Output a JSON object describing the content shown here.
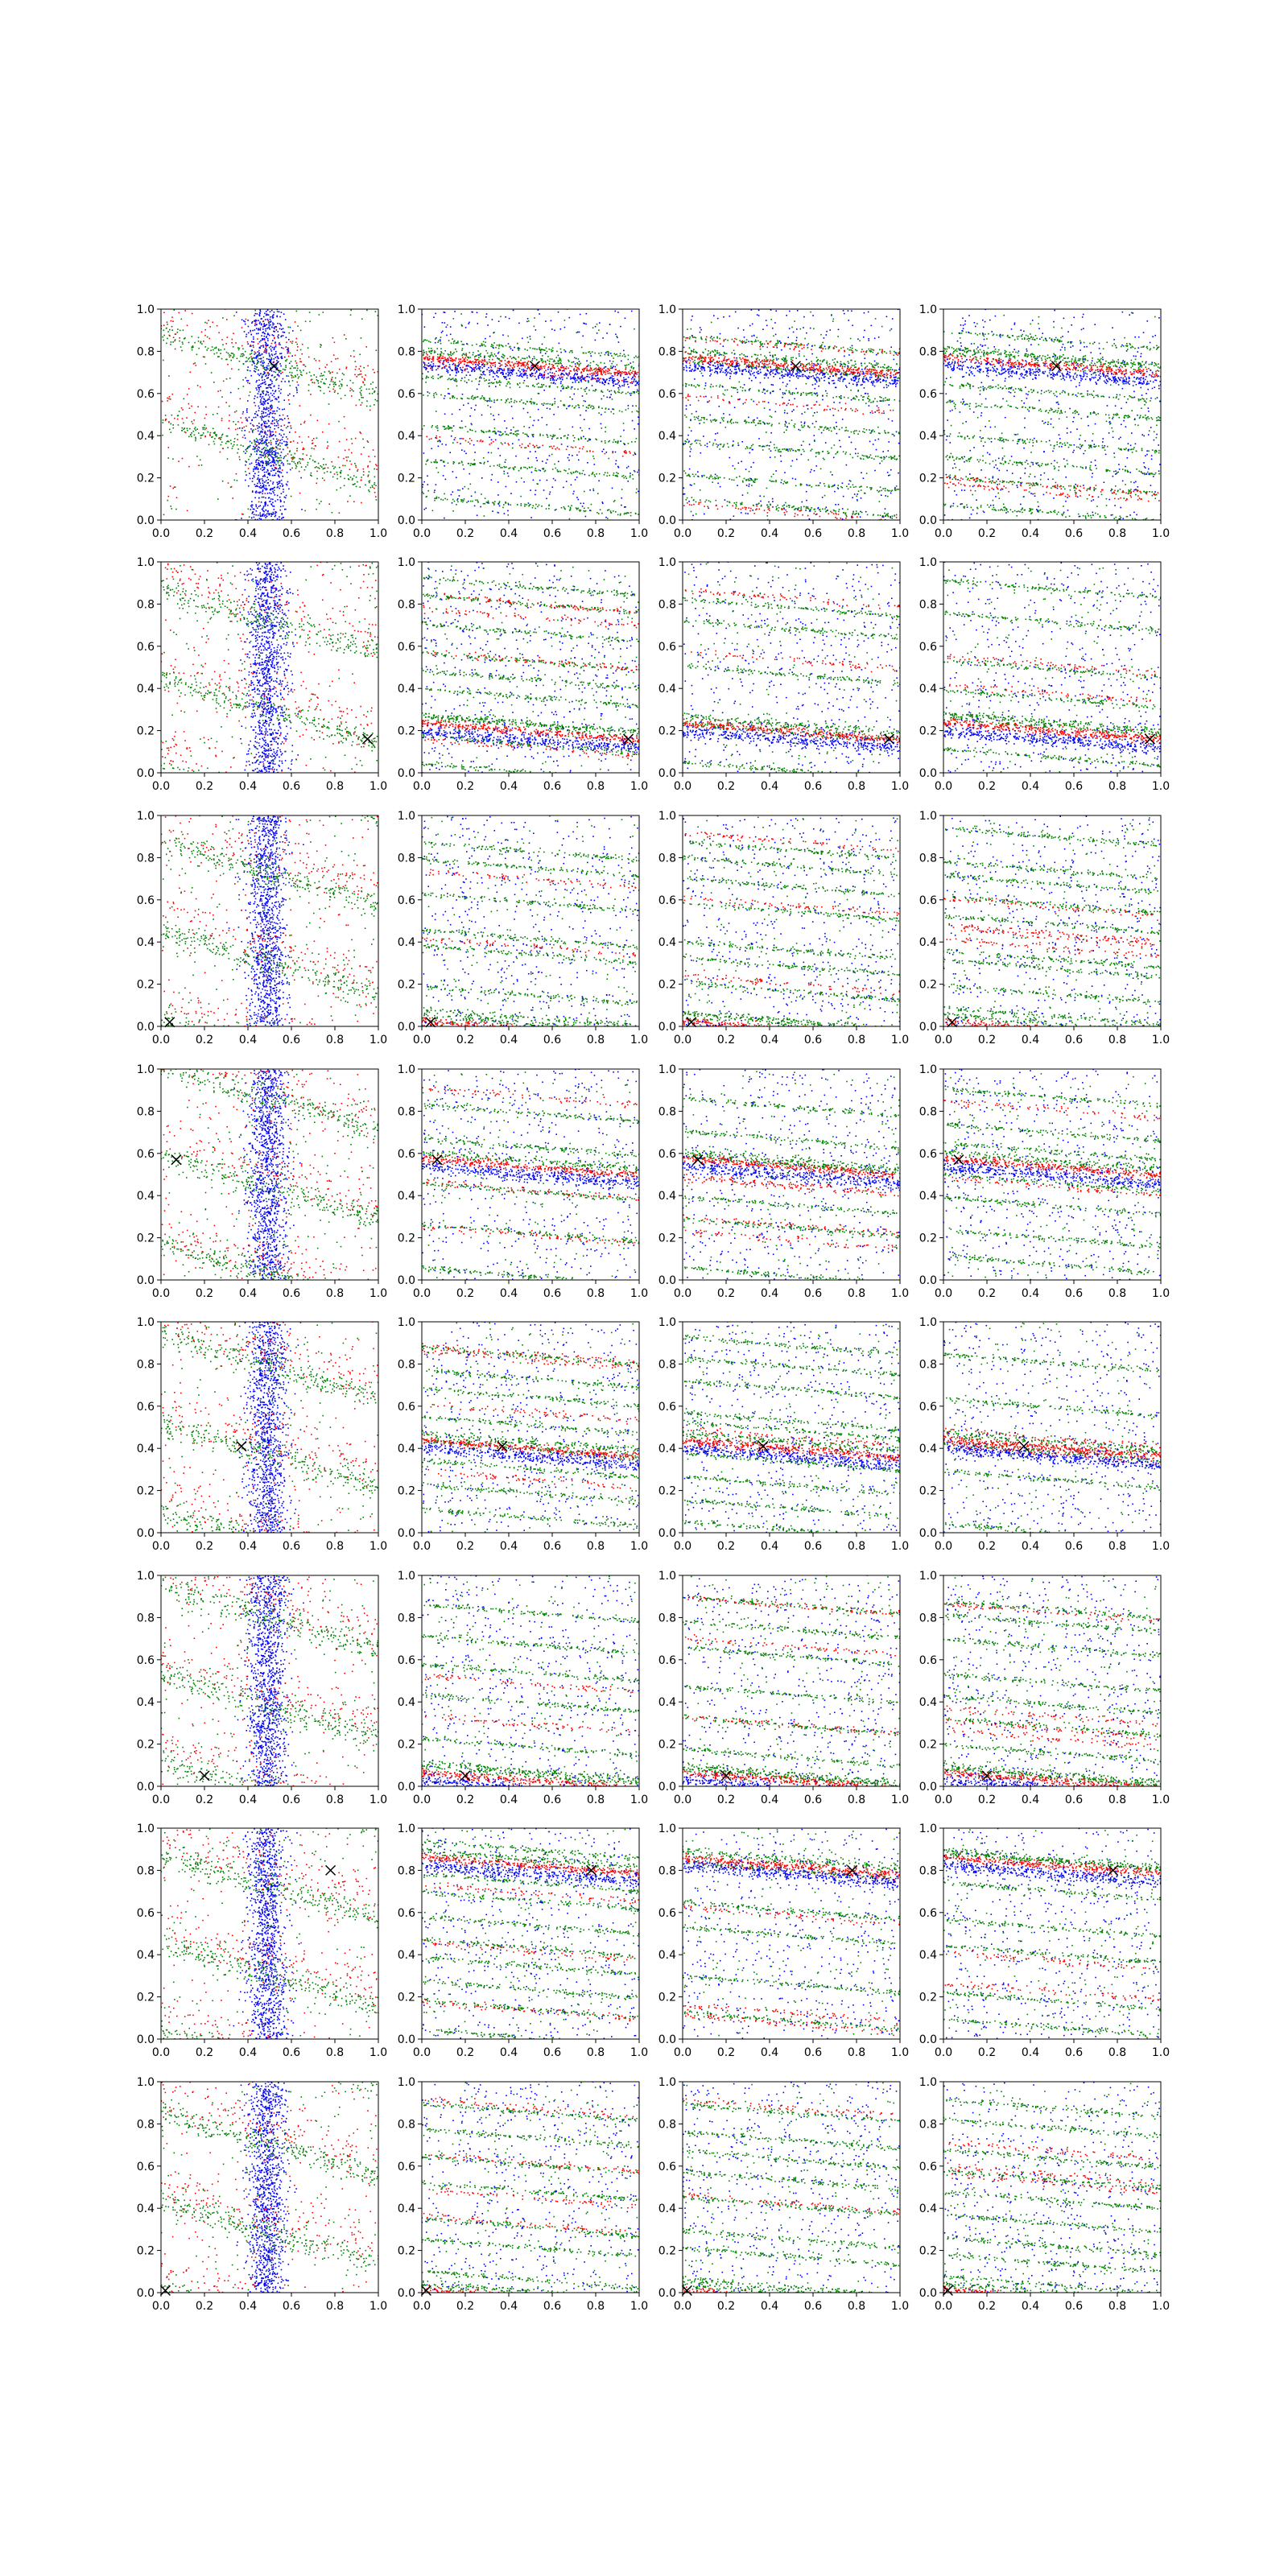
{
  "figure": {
    "rows": 8,
    "cols": 4
  },
  "colors": {
    "series_a": "#ff0000",
    "series_b": "#008000",
    "series_c": "#0000ff",
    "marker": "#000000",
    "axes": "#000000"
  },
  "chart_data": {
    "type": "scatter",
    "layout": "8x4 grid of scatter subplots",
    "xlim": [
      0,
      1
    ],
    "ylim": [
      0,
      1
    ],
    "xticks": [
      "0.0",
      "0.2",
      "0.4",
      "0.6",
      "0.8",
      "1.0"
    ],
    "yticks": [
      "0.0",
      "0.2",
      "0.4",
      "0.6",
      "0.8",
      "1.0"
    ],
    "grid": false,
    "legend": "none",
    "marker_symbol": "×",
    "series_colors": [
      "#ff0000",
      "#008000",
      "#0000ff"
    ],
    "marker_positions": [
      {
        "x": 0.52,
        "y": 0.73
      },
      {
        "x": 0.95,
        "y": 0.16
      },
      {
        "x": 0.04,
        "y": 0.02
      },
      {
        "x": 0.07,
        "y": 0.57
      },
      {
        "x": 0.37,
        "y": 0.41
      },
      {
        "x": 0.2,
        "y": 0.05
      },
      {
        "x": 0.78,
        "y": 0.8
      },
      {
        "x": 0.02,
        "y": 0.01
      }
    ],
    "panel_columns": [
      {
        "column": 1,
        "pattern": "vertical blue cloud near x=0.5 with diagonal green and red bands"
      },
      {
        "column": 2,
        "pattern": "near-horizontal descending bands of red, green and blue points"
      },
      {
        "column": 3,
        "pattern": "near-horizontal descending bands of red, green and blue points"
      },
      {
        "column": 4,
        "pattern": "near-horizontal descending bands of red, green and blue points"
      }
    ]
  }
}
